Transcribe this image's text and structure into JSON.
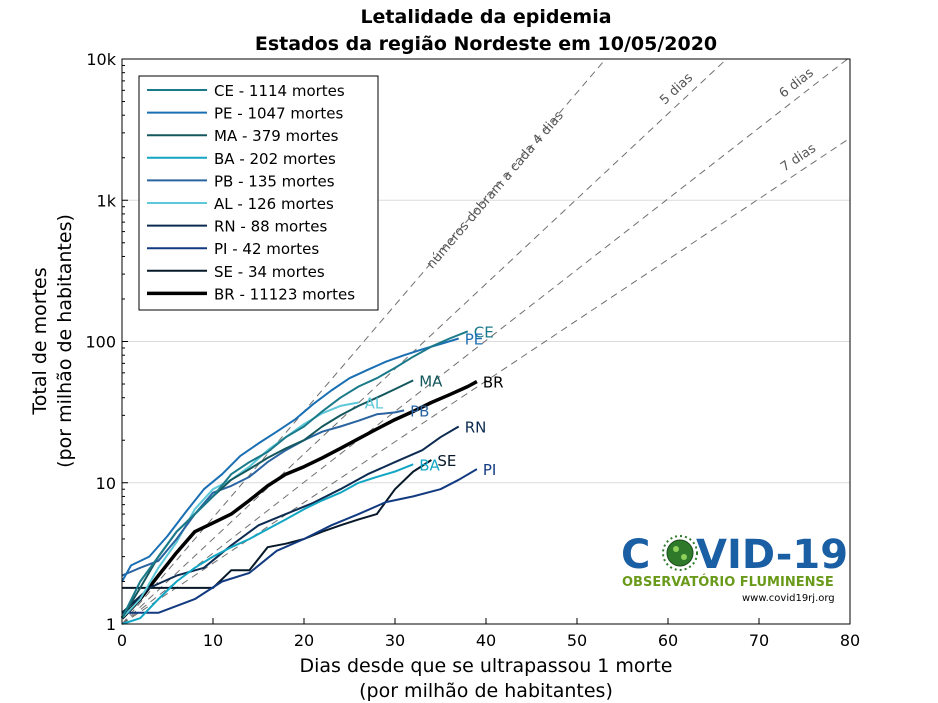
{
  "chart_data": {
    "type": "line",
    "title": "Letalidade da epidemia",
    "subtitle": "Estados da região Nordeste em 10/05/2020",
    "xlabel": [
      "Dias desde que se ultrapassou 1 morte",
      "(por milhão de habitantes)"
    ],
    "ylabel": [
      "Total de mortes",
      "(por milhão de habitantes)"
    ],
    "xlim": [
      0,
      80
    ],
    "ylim": [
      1,
      10000
    ],
    "yscale": "log",
    "xticks": [
      "0",
      "10",
      "20",
      "30",
      "40",
      "50",
      "60",
      "70",
      "80"
    ],
    "yticks": [
      "1",
      "10",
      "100",
      "1k",
      "10k"
    ],
    "grid": "y-major",
    "legend_position": "top-left",
    "guides": [
      {
        "label": "números dobram a cada 4 dias",
        "doubling_days": 4
      },
      {
        "label": "5 dias",
        "doubling_days": 5
      },
      {
        "label": "6 dias",
        "doubling_days": 6
      },
      {
        "label": "7 dias",
        "doubling_days": 7
      }
    ],
    "series": [
      {
        "name": "CE - 1114 mortes",
        "end_label": "CE",
        "color": "#1b7a8a",
        "width": 2,
        "x": [
          0,
          2,
          4,
          6,
          8,
          10,
          12,
          14,
          16,
          18,
          20,
          22,
          24,
          26,
          28,
          30,
          32,
          34,
          36,
          38
        ],
        "y": [
          1.1,
          2.0,
          3.0,
          4.5,
          6.0,
          8.0,
          11.5,
          14.0,
          16.5,
          21.0,
          25.0,
          32.0,
          40.0,
          48.0,
          55.0,
          65.0,
          78.0,
          92.0,
          105.0,
          118.0
        ]
      },
      {
        "name": "PE - 1047 mortes",
        "end_label": "PE",
        "color": "#1a6fb3",
        "width": 2,
        "x": [
          0,
          1,
          3,
          5,
          7,
          9,
          11,
          13,
          15,
          17,
          19,
          21,
          23,
          25,
          27,
          29,
          31,
          33,
          35,
          37
        ],
        "y": [
          2.0,
          2.6,
          3.0,
          4.2,
          6.2,
          9.0,
          11.5,
          15.5,
          19.0,
          23.0,
          28.0,
          36.0,
          45.0,
          55.0,
          63.0,
          72.0,
          80.0,
          88.0,
          96.0,
          105.0
        ]
      },
      {
        "name": "MA - 379 mortes",
        "end_label": "MA",
        "color": "#14585e",
        "width": 2,
        "x": [
          0,
          2,
          4,
          6,
          8,
          10,
          12,
          14,
          16,
          18,
          20,
          22,
          24,
          26,
          28,
          30,
          32
        ],
        "y": [
          1.1,
          1.8,
          3.0,
          4.5,
          6.0,
          8.0,
          10.5,
          12.5,
          15.0,
          17.5,
          20.0,
          25.0,
          30.0,
          35.0,
          40.0,
          46.0,
          53.0
        ]
      },
      {
        "name": "BA - 202 mortes",
        "end_label": "BA",
        "color": "#12a6c4",
        "width": 2,
        "x": [
          0,
          2,
          4,
          6,
          8,
          10,
          12,
          14,
          16,
          18,
          20,
          22,
          24,
          26,
          28,
          30,
          32
        ],
        "y": [
          1.0,
          1.1,
          1.5,
          2.0,
          2.5,
          3.0,
          3.5,
          4.0,
          4.7,
          5.5,
          6.5,
          7.5,
          8.5,
          10.0,
          11.0,
          12.0,
          13.5
        ]
      },
      {
        "name": "PB - 135 mortes",
        "end_label": "PB",
        "color": "#2a64a0",
        "width": 2,
        "x": [
          0,
          2,
          4,
          6,
          8,
          10,
          12,
          14,
          16,
          18,
          20,
          22,
          24,
          26,
          28,
          30,
          31
        ],
        "y": [
          2.2,
          2.5,
          2.8,
          4.0,
          6.0,
          8.5,
          9.5,
          11.0,
          14.0,
          17.0,
          20.0,
          23.0,
          25.0,
          27.5,
          30.5,
          31.5,
          32.5
        ]
      },
      {
        "name": "AL - 126 mortes",
        "end_label": "AL",
        "color": "#5cc8d8",
        "width": 2,
        "x": [
          0,
          2,
          4,
          6,
          8,
          10,
          12,
          14,
          16,
          18,
          20,
          22,
          24,
          26
        ],
        "y": [
          1.1,
          1.5,
          2.5,
          3.8,
          6.5,
          9.0,
          10.5,
          13.0,
          17.0,
          21.0,
          26.0,
          31.0,
          35.0,
          37.0
        ]
      },
      {
        "name": "RN - 88 mortes",
        "end_label": "RN",
        "color": "#0d2b50",
        "width": 2,
        "x": [
          0,
          3,
          6,
          9,
          12,
          15,
          18,
          21,
          24,
          27,
          30,
          33,
          35,
          37
        ],
        "y": [
          1.2,
          1.8,
          2.2,
          2.5,
          3.6,
          5.0,
          6.0,
          7.2,
          9.0,
          11.5,
          14.0,
          17.0,
          21.0,
          25.0
        ]
      },
      {
        "name": "PI - 42 mortes",
        "end_label": "PI",
        "color": "#123a80",
        "width": 2,
        "x": [
          0,
          4,
          8,
          11,
          14,
          17,
          20,
          23,
          26,
          29,
          32,
          35,
          37,
          39
        ],
        "y": [
          1.2,
          1.2,
          1.5,
          2.0,
          2.3,
          3.3,
          4.0,
          5.0,
          6.0,
          7.3,
          8.0,
          9.0,
          10.5,
          12.5
        ]
      },
      {
        "name": "SE - 34 mortes",
        "end_label": "SE",
        "color": "#071828",
        "width": 2,
        "x": [
          0,
          4,
          8,
          10,
          12,
          14,
          16,
          18,
          20,
          22,
          24,
          26,
          28,
          30,
          32,
          34
        ],
        "y": [
          1.8,
          1.8,
          1.8,
          1.8,
          2.4,
          2.4,
          3.5,
          3.7,
          4.0,
          4.5,
          5.0,
          5.5,
          6.0,
          9.0,
          12.0,
          14.5
        ]
      },
      {
        "name": "BR - 11123 mortes",
        "end_label": "BR",
        "color": "#000000",
        "width": 3.5,
        "x": [
          0,
          2,
          4,
          6,
          8,
          10,
          12,
          14,
          16,
          18,
          20,
          22,
          24,
          26,
          28,
          30,
          32,
          34,
          36,
          38,
          39
        ],
        "y": [
          1.1,
          1.5,
          2.2,
          3.2,
          4.5,
          5.2,
          6.0,
          7.5,
          9.5,
          11.5,
          13.0,
          15.0,
          17.5,
          20.5,
          24.0,
          28.0,
          32.0,
          37.0,
          42.0,
          48.0,
          52.0
        ]
      }
    ]
  },
  "logo": {
    "title_left": "C",
    "title_right": "VID-19",
    "subtitle": "OBSERVATÓRIO FLUMINENSE",
    "url": "www.covid19rj.org"
  }
}
